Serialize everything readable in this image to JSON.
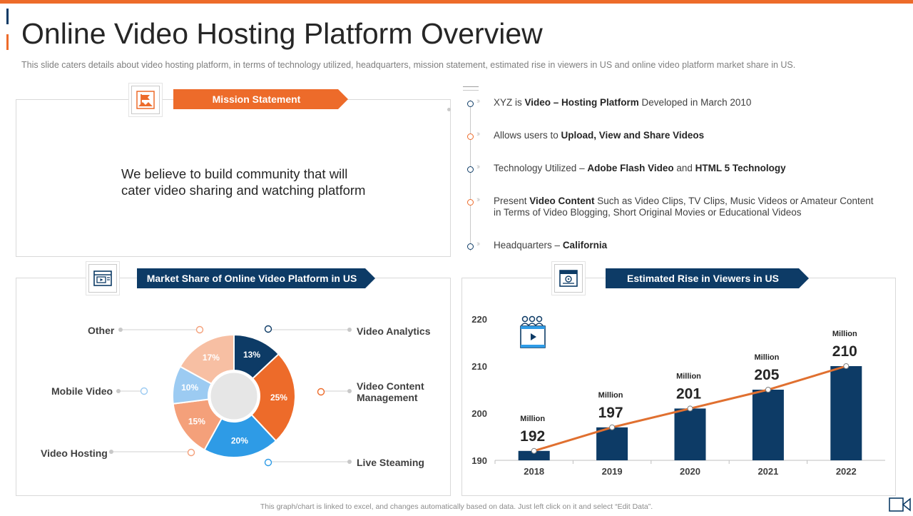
{
  "page": {
    "title": "Online Video Hosting Platform Overview",
    "subtitle": "This slide caters details about video  hosting platform,  in terms of technology utilized, headquarters,  mission statement, estimated rise in viewers  in US and online video  platform  market share in US.",
    "footer": "This graph/chart is linked to excel, and changes automatically based on data. Just left click on it and select “Edit Data”."
  },
  "mission": {
    "banner": "Mission  Statement",
    "line1": "We believe to build community that will",
    "line2": "cater video sharing and watching platform",
    "icon": "mission-flag-icon"
  },
  "bullets": [
    {
      "parts": [
        {
          "t": "XYZ  is "
        },
        {
          "t": "Video – Hosting  Platform",
          "b": true
        },
        {
          "t": " Developed  in March 2010"
        }
      ]
    },
    {
      "parts": [
        {
          "t": "Allows users to "
        },
        {
          "t": "Upload, View and Share Videos",
          "b": true
        }
      ]
    },
    {
      "parts": [
        {
          "t": "Technology  Utilized – "
        },
        {
          "t": "Adobe Flash Video",
          "b": true
        },
        {
          "t": " and "
        },
        {
          "t": "HTML  5 Technology",
          "b": true
        }
      ]
    },
    {
      "parts": [
        {
          "t": "Present "
        },
        {
          "t": "Video Content",
          "b": true
        },
        {
          "t": " Such as Video Clips, TV Clips, Music Videos or Amateur Content in Terms of Video Blogging, Short Original Movies  or Educational Videos"
        }
      ]
    },
    {
      "parts": [
        {
          "t": "Headquarters  – "
        },
        {
          "t": "California",
          "b": true
        }
      ]
    }
  ],
  "market": {
    "banner": "Market Share of Online Video Platform in US",
    "icon": "video-browser-icon"
  },
  "viewers": {
    "banner": "Estimated Rise  in Viewers in US",
    "icon": "calendar-chart-icon",
    "audience_icon": "audience-video-icon"
  },
  "colors": {
    "orange": "#ed6b2a",
    "navy": "#0d3b66",
    "blue": "#2e9be6",
    "light_orange": "#f4a07a",
    "light_blue": "#9ccbf2",
    "peach": "#f7bfa3",
    "line": "#e07030"
  },
  "chart_data": [
    {
      "type": "pie",
      "donut": true,
      "slices": [
        {
          "label": "Video Analytics",
          "value": 13,
          "display": "13%",
          "color": "#0d3b66"
        },
        {
          "label": "Video Content Management",
          "value": 25,
          "display": "25%",
          "color": "#ed6b2a"
        },
        {
          "label": "Live Steaming",
          "value": 20,
          "display": "20%",
          "color": "#2e9be6"
        },
        {
          "label": "Video Hosting",
          "value": 15,
          "display": "15%",
          "color": "#f4a07a"
        },
        {
          "label": "Mobile Video",
          "value": 10,
          "display": "10%",
          "color": "#9ccbf2"
        },
        {
          "label": "Other",
          "value": 17,
          "display": "17%",
          "color": "#f7bfa3"
        }
      ]
    },
    {
      "type": "bar",
      "categories": [
        "2018",
        "2019",
        "2020",
        "2021",
        "2022"
      ],
      "values": [
        192,
        197,
        201,
        205,
        210
      ],
      "value_unit": "Million",
      "ylim": [
        190,
        220
      ],
      "yticks": [
        190,
        200,
        210,
        220
      ],
      "overlay_line": true,
      "bar_color": "#0d3b66",
      "line_color": "#e07030"
    }
  ]
}
